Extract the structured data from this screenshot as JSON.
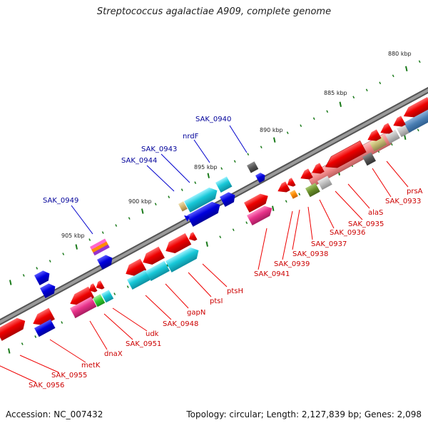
{
  "title": "Streptococcus agalactiae A909, complete genome",
  "accession": "Accession: NC_007432",
  "summary": "Topology: circular; Length: 2,127,839 bp; Genes: 2,098",
  "scale_labels": [
    "880 kbp",
    "885 kbp",
    "890 kbp",
    "895 kbp",
    "900 kbp",
    "905 kbp"
  ],
  "reverse_gene_labels": [
    "prsA",
    "SAK_0933",
    "alaS",
    "SAK_0935",
    "SAK_0936",
    "SAK_0937",
    "SAK_0938",
    "SAK_0939",
    "SAK_0941",
    "ptsH",
    "ptsI",
    "gapN",
    "SAK_0948",
    "udk",
    "SAK_0951",
    "dnaX",
    "metK",
    "SAK_0955",
    "SAK_0956"
  ],
  "forward_gene_labels": [
    "SAK_0940",
    "nrdF",
    "SAK_0943",
    "SAK_0944",
    "SAK_0949"
  ],
  "colors": {
    "backbone": "#7f7f7f",
    "tick": "#1a7a1a",
    "reverse_label": "#cc0000",
    "forward_label": "#000099",
    "red_gene": "#ee0000",
    "blue_gene": "#0000dd",
    "cyan_gene": "#18c8d8",
    "pink_gene": "#e8338a"
  }
}
